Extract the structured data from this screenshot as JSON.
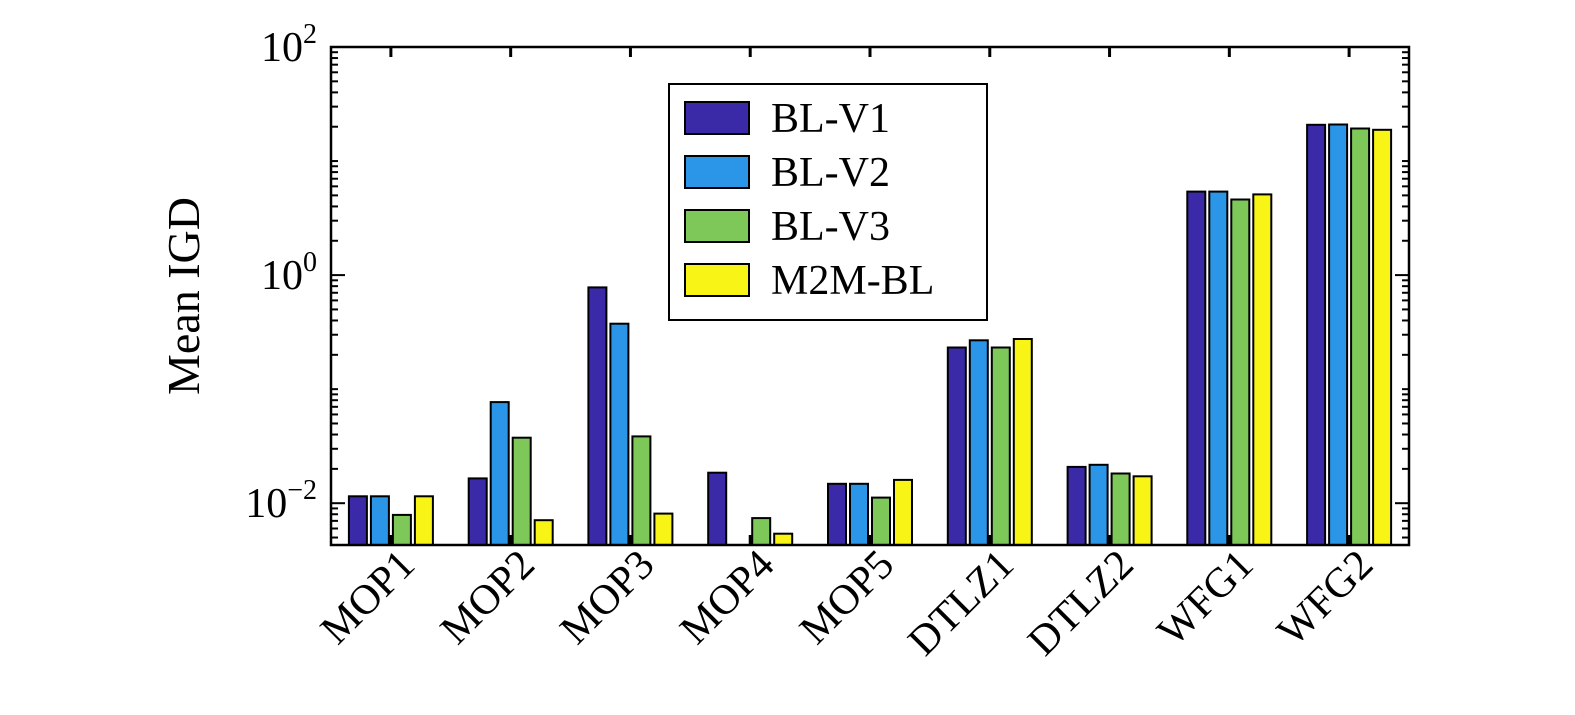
{
  "chart_data": {
    "type": "bar",
    "yscale": "log",
    "ylabel": "Mean IGD",
    "xlabel": "",
    "ylim": [
      0.0043,
      100
    ],
    "yticks": [
      {
        "base": "10",
        "exp": "−2",
        "value": 0.01
      },
      {
        "base": "10",
        "exp": "0",
        "value": 1
      },
      {
        "base": "10",
        "exp": "2",
        "value": 100
      }
    ],
    "categories": [
      "MOP1",
      "MOP2",
      "MOP3",
      "MOP4",
      "MOP5",
      "DTLZ1",
      "DTLZ2",
      "WFG1",
      "WFG2"
    ],
    "series": [
      {
        "name": "BL-V1",
        "color": "#3b2aa8",
        "values": [
          0.0115,
          0.0165,
          0.78,
          0.0185,
          0.0148,
          0.232,
          0.0208,
          5.4,
          20.8
        ]
      },
      {
        "name": "BL-V2",
        "color": "#2b95e8",
        "values": [
          0.0115,
          0.077,
          0.375,
          null,
          0.0148,
          0.268,
          0.0217,
          5.4,
          20.9
        ]
      },
      {
        "name": "BL-V3",
        "color": "#7ec85a",
        "values": [
          0.0079,
          0.0375,
          0.0385,
          0.0074,
          0.0112,
          0.232,
          0.0182,
          4.6,
          19.3
        ]
      },
      {
        "name": "M2M-BL",
        "color": "#f8f416",
        "values": [
          0.0115,
          0.0071,
          0.0081,
          0.0054,
          0.016,
          0.275,
          0.0172,
          5.1,
          18.8
        ]
      }
    ],
    "legend": {
      "position": "top-center"
    },
    "grid": false
  }
}
